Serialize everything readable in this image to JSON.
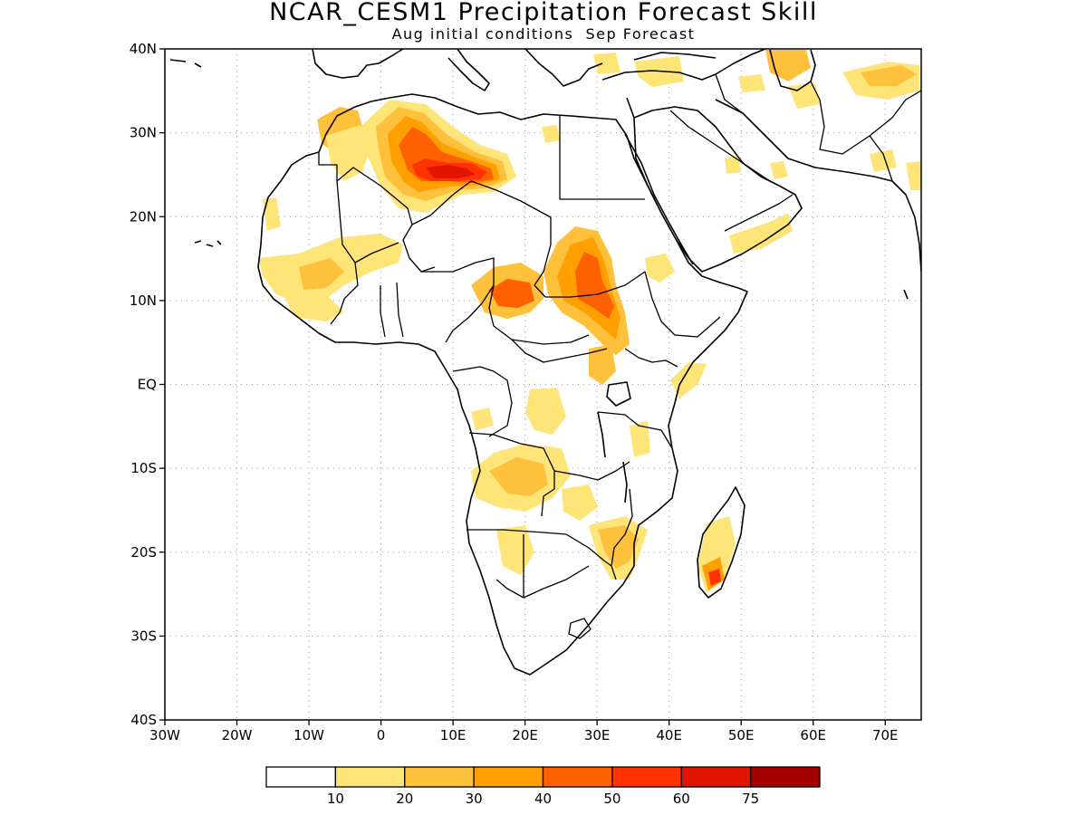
{
  "header": {
    "title": "NCAR_CESM1 Precipitation Forecast Skill",
    "subtitle": "Aug initial conditions  Sep Forecast"
  },
  "map": {
    "region": "Africa",
    "lon_range": [
      -30,
      75
    ],
    "lat_range": [
      -40,
      40
    ],
    "lat_labels": [
      "40N",
      "30N",
      "20N",
      "10N",
      "EQ",
      "10S",
      "20S",
      "30S",
      "40S"
    ],
    "lon_labels": [
      "30W",
      "20W",
      "10W",
      "0",
      "10E",
      "20E",
      "30E",
      "40E",
      "50E",
      "60E",
      "70E"
    ],
    "grid": "dotted",
    "coastline_color": "#000000"
  },
  "colorbar": {
    "levels": [
      "10",
      "20",
      "30",
      "40",
      "50",
      "60",
      "75"
    ],
    "colors": [
      "#ffffff",
      "#ffe478",
      "#ffc03c",
      "#ffa000",
      "#ff6000",
      "#ff3200",
      "#e11400",
      "#a50000"
    ]
  }
}
